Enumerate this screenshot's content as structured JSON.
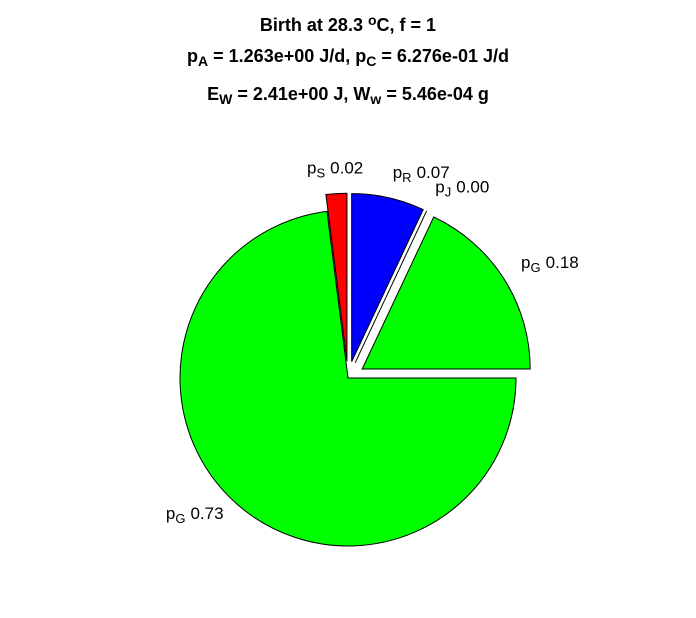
{
  "chart_data": {
    "type": "pie",
    "title": [
      [
        {
          "text": "Birth at 28.3 "
        },
        {
          "text": "o",
          "script": "sup"
        },
        {
          "text": "C, f = 1"
        }
      ],
      [
        {
          "text": "p"
        },
        {
          "text": "A",
          "script": "sub"
        },
        {
          "text": " = 1.263e+00 J/d, p"
        },
        {
          "text": "C",
          "script": "sub"
        },
        {
          "text": " = 6.276e-01 J/d"
        }
      ],
      [
        {
          "text": "E"
        },
        {
          "text": "W",
          "script": "sub"
        },
        {
          "text": " = 2.41e+00 J, W"
        },
        {
          "text": "w",
          "script": "sub"
        },
        {
          "text": " = 5.46e-04 g"
        }
      ]
    ],
    "categories": [
      [
        {
          "text": "p"
        },
        {
          "text": "R",
          "script": "sub"
        }
      ],
      [
        {
          "text": "p"
        },
        {
          "text": "J",
          "script": "sub"
        }
      ],
      [
        {
          "text": "p"
        },
        {
          "text": "G",
          "script": "sub"
        }
      ],
      [
        {
          "text": "p"
        },
        {
          "text": "G",
          "script": "sub"
        }
      ],
      [
        {
          "text": "p"
        },
        {
          "text": "S",
          "script": "sub"
        }
      ]
    ],
    "values": [
      0.07,
      0,
      0.18,
      0.73,
      0.02
    ],
    "value_labels": [
      "0.07",
      "0.00",
      "0.18",
      "0.73",
      "0.02"
    ],
    "colors": [
      "#0000ff",
      "#ffffff",
      "#00ff00",
      "#00ff00",
      "#ff0000"
    ],
    "explode": [
      true,
      true,
      true,
      false,
      true
    ]
  }
}
